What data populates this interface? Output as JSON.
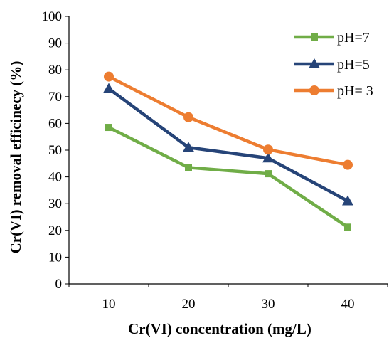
{
  "chart_data": {
    "type": "line",
    "title": "",
    "xlabel": "Cr(VI) concentration (mg/L)",
    "ylabel": "Cr(VI) removal efficinecy (%)",
    "x": [
      10,
      20,
      30,
      40
    ],
    "x_tick_labels": [
      "10",
      "20",
      "30",
      "40"
    ],
    "ylim": [
      0,
      100
    ],
    "y_tick_labels": [
      "0",
      "10",
      "20",
      "30",
      "40",
      "50",
      "60",
      "70",
      "80",
      "90",
      "100"
    ],
    "grid": false,
    "legend_position": "top-right",
    "series": [
      {
        "name": "pH=7",
        "values": [
          58.5,
          43.5,
          41.2,
          21.2
        ],
        "color": "#70ad47",
        "marker": "square"
      },
      {
        "name": "pH=5",
        "values": [
          73.0,
          51.0,
          47.0,
          31.0
        ],
        "color": "#264478",
        "marker": "triangle"
      },
      {
        "name": "pH= 3",
        "values": [
          77.5,
          62.3,
          50.2,
          44.5
        ],
        "color": "#ed7d31",
        "marker": "circle"
      }
    ]
  }
}
